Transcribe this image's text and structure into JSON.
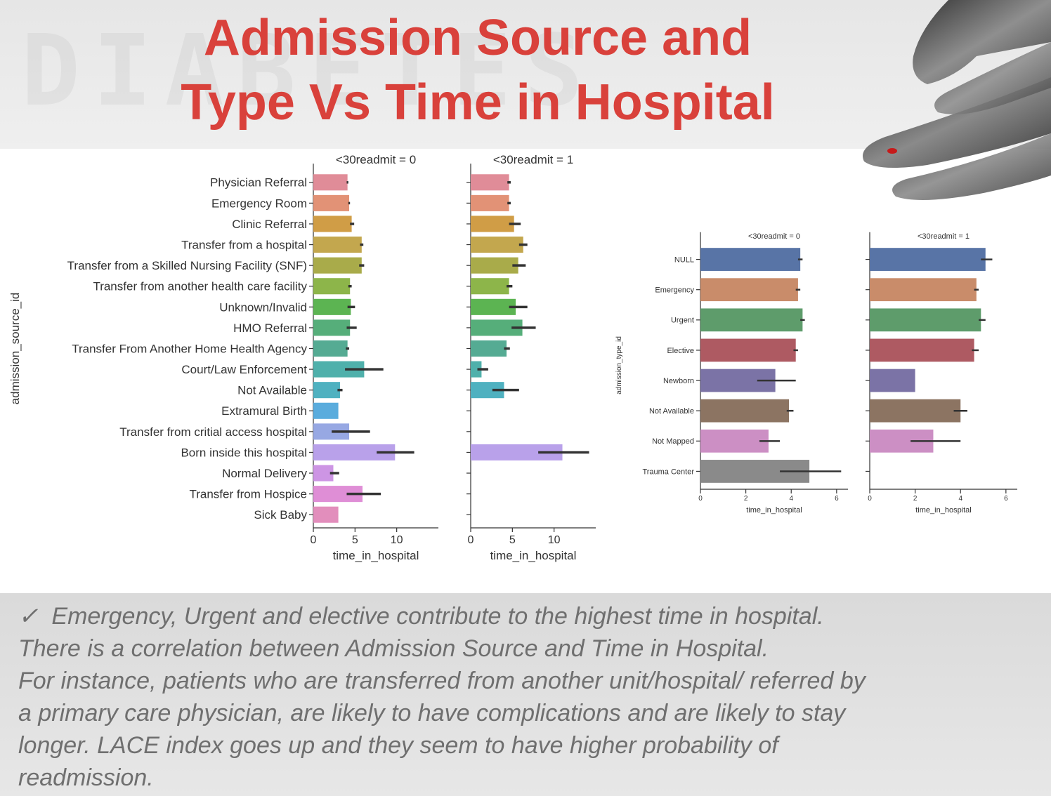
{
  "title": {
    "line1": "Admission Source and",
    "line2": "Type Vs Time in Hospital"
  },
  "decor": {
    "watermark": "DIABETES"
  },
  "note": {
    "check_icon": "✓",
    "line1": "Emergency, Urgent and elective contribute to the highest time in hospital.",
    "line2": "There is a correlation between Admission Source and Time in Hospital.",
    "line3": "For instance, patients who are transferred from another unit/hospital/ referred by",
    "line4": "a primary care physician, are likely to have complications and are likely to stay",
    "line5": "longer. LACE index goes up and they seem to have higher probability of",
    "line6": "readmission."
  },
  "chart_data": [
    {
      "type": "bar",
      "orientation": "horizontal",
      "ylabel": "admission_source_id",
      "xlabel": "time_in_hospital",
      "xlim": [
        0,
        15
      ],
      "xticks": [
        0,
        5,
        10
      ],
      "categories": [
        "Physician Referral",
        "Emergency Room",
        "Clinic Referral",
        "Transfer from a hospital",
        "Transfer from a Skilled Nursing Facility (SNF)",
        "Transfer from another health care facility",
        "Unknown/Invalid",
        "HMO Referral",
        "Transfer From Another Home Health Agency",
        "Court/Law Enforcement",
        "Not Available",
        "Extramural Birth",
        "Transfer from critial access hospital",
        "Born inside this hospital",
        "Normal Delivery",
        "Transfer from Hospice",
        "Sick Baby"
      ],
      "colors": [
        "#e08c98",
        "#e29276",
        "#d09d46",
        "#c3a74e",
        "#a9ab4a",
        "#8db54a",
        "#5cb452",
        "#56ae7a",
        "#55ab93",
        "#4fb0ab",
        "#4fb1c0",
        "#5aacdd",
        "#97a8e3",
        "#b9a1ea",
        "#cd95e4",
        "#df8ed6",
        "#e28ebc"
      ],
      "panels": [
        {
          "title": "<30readmit = 0",
          "values": [
            4.1,
            4.3,
            4.6,
            5.8,
            5.8,
            4.4,
            4.5,
            4.4,
            4.1,
            6.1,
            3.2,
            3.0,
            4.3,
            9.8,
            2.4,
            5.9,
            3.0
          ],
          "ci": [
            [
              4.0,
              4.2
            ],
            [
              4.2,
              4.4
            ],
            [
              4.4,
              4.9
            ],
            [
              5.6,
              6.0
            ],
            [
              5.5,
              6.1
            ],
            [
              4.2,
              4.6
            ],
            [
              4.1,
              5.0
            ],
            [
              4.0,
              5.2
            ],
            [
              3.9,
              4.3
            ],
            [
              3.8,
              8.4
            ],
            [
              2.9,
              3.5
            ],
            null,
            [
              2.2,
              6.8
            ],
            [
              7.6,
              12.1
            ],
            [
              2.0,
              3.1
            ],
            [
              4.0,
              8.1
            ],
            null
          ]
        },
        {
          "title": "<30readmit = 1",
          "values": [
            4.6,
            4.6,
            5.2,
            6.3,
            5.7,
            4.6,
            5.4,
            6.2,
            4.3,
            1.3,
            4.0,
            null,
            null,
            11.0,
            null,
            null,
            null
          ],
          "ci": [
            [
              4.4,
              4.8
            ],
            [
              4.4,
              4.8
            ],
            [
              4.6,
              6.0
            ],
            [
              5.8,
              6.8
            ],
            [
              5.0,
              6.6
            ],
            [
              4.3,
              5.0
            ],
            [
              4.6,
              6.8
            ],
            [
              4.9,
              7.8
            ],
            [
              4.0,
              4.7
            ],
            [
              0.8,
              2.1
            ],
            [
              2.6,
              5.8
            ],
            null,
            null,
            [
              8.1,
              14.2
            ],
            null,
            null,
            null
          ]
        }
      ]
    },
    {
      "type": "bar",
      "orientation": "horizontal",
      "ylabel": "admission_type_id",
      "xlabel": "time_in_hospital",
      "xlim": [
        0,
        6.5
      ],
      "xticks": [
        0,
        2,
        4,
        6
      ],
      "categories": [
        "NULL",
        "Emergency",
        "Urgent",
        "Elective",
        "Newborn",
        "Not Available",
        "Not Mapped",
        "Trauma Center"
      ],
      "colors": [
        "#5874a6",
        "#c98c6a",
        "#5e9c6b",
        "#ae5a62",
        "#7b73a6",
        "#8c7462",
        "#cc8fc4",
        "#8a8a8a"
      ],
      "panels": [
        {
          "title": "<30readmit = 0",
          "values": [
            4.4,
            4.3,
            4.5,
            4.2,
            3.3,
            3.9,
            3.0,
            4.8
          ],
          "ci": [
            [
              4.3,
              4.5
            ],
            [
              4.2,
              4.4
            ],
            [
              4.4,
              4.6
            ],
            [
              4.1,
              4.3
            ],
            [
              2.5,
              4.2
            ],
            [
              3.8,
              4.1
            ],
            [
              2.6,
              3.5
            ],
            [
              3.5,
              6.2
            ]
          ]
        },
        {
          "title": "<30readmit = 1",
          "values": [
            5.1,
            4.7,
            4.9,
            4.6,
            2.0,
            4.0,
            2.8,
            null
          ],
          "ci": [
            [
              4.9,
              5.4
            ],
            [
              4.6,
              4.8
            ],
            [
              4.8,
              5.1
            ],
            [
              4.5,
              4.8
            ],
            null,
            [
              3.7,
              4.3
            ],
            [
              1.8,
              4.0
            ],
            null
          ]
        }
      ]
    }
  ]
}
